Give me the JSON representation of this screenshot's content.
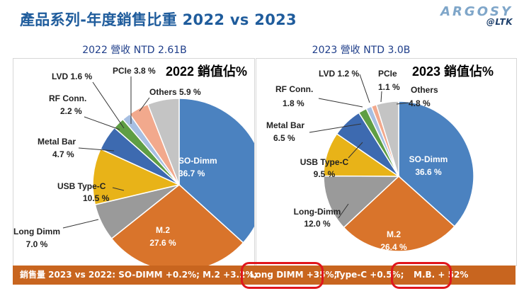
{
  "title": "產品系列-年度銷售比重 2022 vs 2023",
  "logo": {
    "brand": "ARGOSY",
    "sub": "@LTK"
  },
  "chart_data": [
    {
      "type": "pie",
      "subtitle": "2022 營收 NTD 2.61B",
      "heading": "2022 銷值佔%",
      "slices": [
        {
          "name": "SO-Dimm",
          "label": "SO-Dimm",
          "pct": "36.7 %",
          "value": 36.7,
          "color": "#4b82c0"
        },
        {
          "name": "M.2",
          "label": "M.2",
          "pct": "27.6 %",
          "value": 27.6,
          "color": "#d9742b"
        },
        {
          "name": "Long Dimm",
          "label": "Long Dimm",
          "pct": "7.0 %",
          "value": 7.0,
          "color": "#9a9a9a"
        },
        {
          "name": "USB Type-C",
          "label": "USB Type-C",
          "pct": "10.5 %",
          "value": 10.5,
          "color": "#e8b318"
        },
        {
          "name": "Metal Bar",
          "label": "Metal Bar",
          "pct": "4.7 %",
          "value": 4.7,
          "color": "#3d6ab0"
        },
        {
          "name": "RF Conn.",
          "label": "RF Conn.",
          "pct": "2.2 %",
          "value": 2.2,
          "color": "#5f9e44"
        },
        {
          "name": "LVD",
          "label": "LVD 1.6 %",
          "pct": "",
          "value": 1.6,
          "color": "#a7bfe2"
        },
        {
          "name": "PCIe",
          "label": "PCIe 3.8 %",
          "pct": "",
          "value": 3.8,
          "color": "#f2a98d"
        },
        {
          "name": "Others",
          "label": "Others 5.9 %",
          "pct": "",
          "value": 5.9,
          "color": "#c4c4c4"
        }
      ]
    },
    {
      "type": "pie",
      "subtitle": "2023 營收 NTD 3.0B",
      "heading": "2023 銷值佔%",
      "slices": [
        {
          "name": "SO-Dimm",
          "label": "SO-Dimm",
          "pct": "36.6 %",
          "value": 36.6,
          "color": "#4b82c0"
        },
        {
          "name": "M.2",
          "label": "M.2",
          "pct": "26.4 %",
          "value": 26.4,
          "color": "#d9742b"
        },
        {
          "name": "Long-Dimm",
          "label": "Long-Dimm",
          "pct": "12.0 %",
          "value": 12.0,
          "color": "#9a9a9a"
        },
        {
          "name": "USB Type-C",
          "label": "USB Type-C",
          "pct": "9.5 %",
          "value": 9.5,
          "color": "#e8b318"
        },
        {
          "name": "Metal Bar",
          "label": "Metal Bar",
          "pct": "6.5 %",
          "value": 6.5,
          "color": "#3d6ab0"
        },
        {
          "name": "RF Conn.",
          "label": "RF Conn.",
          "pct": "1.8 %",
          "value": 1.8,
          "color": "#5f9e44"
        },
        {
          "name": "LVD",
          "label": "LVD  1.2 %",
          "pct": "",
          "value": 1.2,
          "color": "#a7bfe2"
        },
        {
          "name": "PCIe",
          "label": "PCIe",
          "pct": "1.1 %",
          "value": 1.1,
          "color": "#f2a98d"
        },
        {
          "name": "Others",
          "label": "Others",
          "pct": "4.8 %",
          "value": 4.8,
          "color": "#c4c4c4"
        }
      ]
    }
  ],
  "bottom_bar": {
    "items": [
      "銷售量 2023 vs 2022:  SO-DIMM +0.2%;   M.2 +3.2%;",
      "Long DIMM +35%;",
      "Type-C +0.5%;",
      "M.B. + 52%"
    ]
  }
}
